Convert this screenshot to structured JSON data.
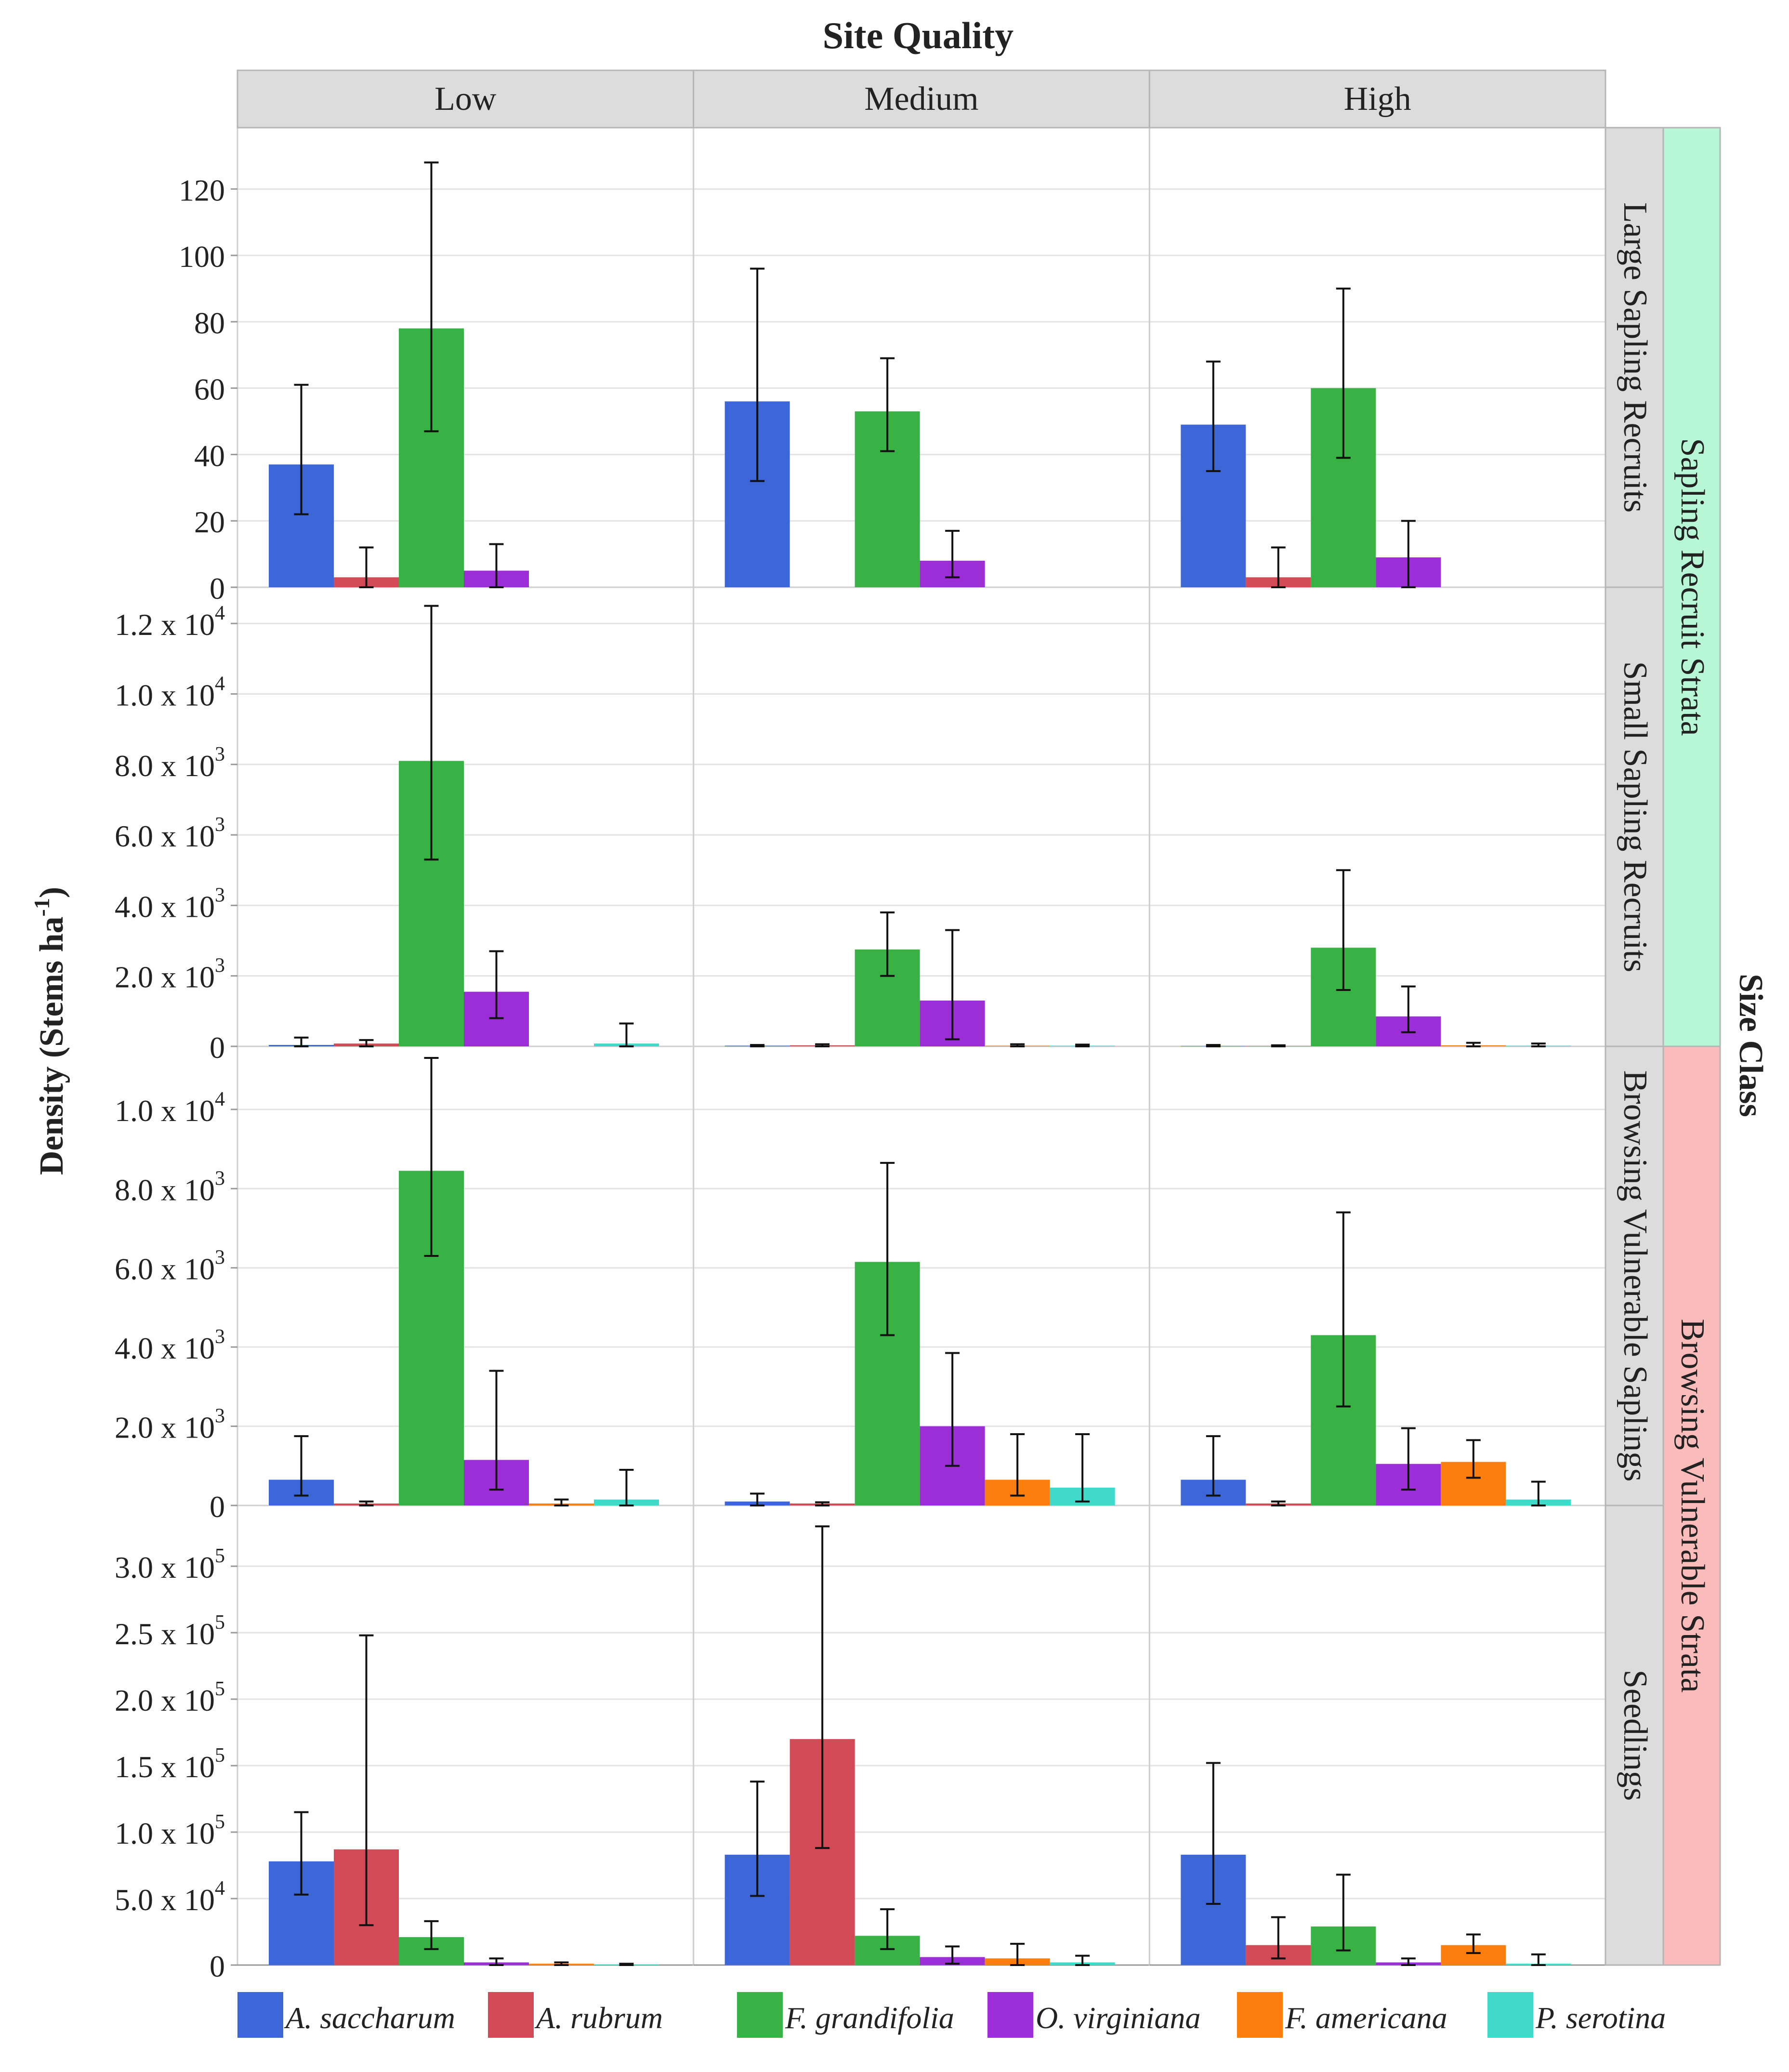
{
  "chart_data": {
    "type": "bar",
    "title": "Site Quality",
    "ylabel": "Density (Stems ha-1)",
    "ylabel_main": "Density (Stems ha",
    "ylabel_exp": "-1",
    "ylabel_close": ")",
    "size_class_label": "Size Class",
    "columns": [
      "Low",
      "Medium",
      "High"
    ],
    "rows": [
      "Large Sapling Recruits",
      "Small Sapling Recruits",
      "Browsing Vulnerable Saplings",
      "Seedlings"
    ],
    "strata": [
      {
        "label": "Sapling Recruit Strata",
        "rows": [
          0,
          1
        ],
        "color": "#b7f7d5"
      },
      {
        "label": "Browsing Vulnerable Strata",
        "rows": [
          2,
          3
        ],
        "color": "#f9bcbb"
      }
    ],
    "species": [
      {
        "name": "A. saccharum",
        "color": "#3d67d8"
      },
      {
        "name": "A. rubrum",
        "color": "#d14a56"
      },
      {
        "name": "F. grandifolia",
        "color": "#38b145"
      },
      {
        "name": "O. virginiana",
        "color": "#9b2ed6"
      },
      {
        "name": "F. americana",
        "color": "#fb7e0f"
      },
      {
        "name": "P. serotina",
        "color": "#3fdac9"
      }
    ],
    "panels": [
      {
        "ylim": [
          0,
          135
        ],
        "ticks": [
          {
            "v": 0,
            "m": "0",
            "e": ""
          },
          {
            "v": 20,
            "m": "20",
            "e": ""
          },
          {
            "v": 40,
            "m": "40",
            "e": ""
          },
          {
            "v": 60,
            "m": "60",
            "e": ""
          },
          {
            "v": 80,
            "m": "80",
            "e": ""
          },
          {
            "v": 100,
            "m": "100",
            "e": ""
          },
          {
            "v": 120,
            "m": "120",
            "e": ""
          }
        ],
        "data": [
          [
            [
              37,
              22,
              61
            ],
            [
              3,
              0,
              12
            ],
            [
              78,
              47,
              128
            ],
            [
              5,
              0,
              13
            ],
            [
              0,
              0,
              0
            ],
            [
              0,
              0,
              0
            ]
          ],
          [
            [
              56,
              32,
              96
            ],
            [
              0,
              0,
              0
            ],
            [
              53,
              41,
              69
            ],
            [
              8,
              3,
              17
            ],
            [
              0,
              0,
              0
            ],
            [
              0,
              0,
              0
            ]
          ],
          [
            [
              49,
              35,
              68
            ],
            [
              3,
              0,
              12
            ],
            [
              60,
              39,
              90
            ],
            [
              9,
              0,
              20
            ],
            [
              0,
              0,
              0
            ],
            [
              0,
              0,
              0
            ]
          ]
        ]
      },
      {
        "ylim": [
          0,
          12700
        ],
        "ticks": [
          {
            "v": 0,
            "m": "0",
            "e": ""
          },
          {
            "v": 2000,
            "m": "2.0 x 10",
            "e": "3"
          },
          {
            "v": 4000,
            "m": "4.0 x 10",
            "e": "3"
          },
          {
            "v": 6000,
            "m": "6.0 x 10",
            "e": "3"
          },
          {
            "v": 8000,
            "m": "8.0 x 10",
            "e": "3"
          },
          {
            "v": 10000,
            "m": "1.0 x 10",
            "e": "4"
          },
          {
            "v": 12000,
            "m": "1.2 x 10",
            "e": "4"
          }
        ],
        "data": [
          [
            [
              40,
              0,
              250
            ],
            [
              80,
              0,
              180
            ],
            [
              8100,
              5300,
              12500
            ],
            [
              1550,
              800,
              2700
            ],
            [
              0,
              0,
              0
            ],
            [
              80,
              0,
              650
            ]
          ],
          [
            [
              20,
              0,
              40
            ],
            [
              30,
              0,
              60
            ],
            [
              2750,
              2000,
              3800
            ],
            [
              1300,
              200,
              3300
            ],
            [
              20,
              0,
              60
            ],
            [
              20,
              0,
              50
            ]
          ],
          [
            [
              10,
              0,
              40
            ],
            [
              10,
              0,
              30
            ],
            [
              2800,
              1600,
              5000
            ],
            [
              850,
              400,
              1700
            ],
            [
              30,
              0,
              100
            ],
            [
              20,
              0,
              80
            ]
          ]
        ]
      },
      {
        "ylim": [
          0,
          11300
        ],
        "ticks": [
          {
            "v": 0,
            "m": "0",
            "e": ""
          },
          {
            "v": 2000,
            "m": "2.0 x 10",
            "e": "3"
          },
          {
            "v": 4000,
            "m": "4.0 x 10",
            "e": "3"
          },
          {
            "v": 6000,
            "m": "6.0 x 10",
            "e": "3"
          },
          {
            "v": 8000,
            "m": "8.0 x 10",
            "e": "3"
          },
          {
            "v": 10000,
            "m": "1.0 x 10",
            "e": "4"
          }
        ],
        "data": [
          [
            [
              650,
              250,
              1750
            ],
            [
              50,
              0,
              100
            ],
            [
              8450,
              6300,
              11300
            ],
            [
              1150,
              400,
              3400
            ],
            [
              50,
              0,
              150
            ],
            [
              150,
              0,
              900
            ]
          ],
          [
            [
              100,
              0,
              300
            ],
            [
              50,
              0,
              80
            ],
            [
              6150,
              4300,
              8650
            ],
            [
              2000,
              1000,
              3850
            ],
            [
              650,
              250,
              1800
            ],
            [
              450,
              100,
              1800
            ]
          ],
          [
            [
              650,
              250,
              1750
            ],
            [
              50,
              0,
              100
            ],
            [
              4300,
              2500,
              7400
            ],
            [
              1050,
              400,
              1950
            ],
            [
              1100,
              700,
              1650
            ],
            [
              150,
              0,
              600
            ]
          ]
        ]
      },
      {
        "ylim": [
          0,
          337000
        ],
        "ticks": [
          {
            "v": 0,
            "m": "0",
            "e": ""
          },
          {
            "v": 50000,
            "m": "5.0 x 10",
            "e": "4"
          },
          {
            "v": 100000,
            "m": "1.0 x 10",
            "e": "5"
          },
          {
            "v": 150000,
            "m": "1.5 x 10",
            "e": "5"
          },
          {
            "v": 200000,
            "m": "2.0 x 10",
            "e": "5"
          },
          {
            "v": 250000,
            "m": "2.5 x 10",
            "e": "5"
          },
          {
            "v": 300000,
            "m": "3.0 x 10",
            "e": "5"
          }
        ],
        "data": [
          [
            [
              78000,
              53000,
              115000
            ],
            [
              87000,
              30000,
              248000
            ],
            [
              21000,
              12000,
              33000
            ],
            [
              2000,
              0,
              5000
            ],
            [
              1000,
              0,
              2000
            ],
            [
              500,
              0,
              1000
            ]
          ],
          [
            [
              83000,
              52000,
              138000
            ],
            [
              170000,
              88000,
              330000
            ],
            [
              22000,
              12000,
              42000
            ],
            [
              6000,
              1000,
              14000
            ],
            [
              5000,
              0,
              16000
            ],
            [
              2000,
              0,
              7000
            ]
          ],
          [
            [
              83000,
              46000,
              152000
            ],
            [
              15000,
              5000,
              36000
            ],
            [
              29000,
              11000,
              68000
            ],
            [
              2000,
              0,
              5000
            ],
            [
              15000,
              9000,
              23000
            ],
            [
              1000,
              0,
              8000
            ]
          ]
        ]
      }
    ]
  }
}
